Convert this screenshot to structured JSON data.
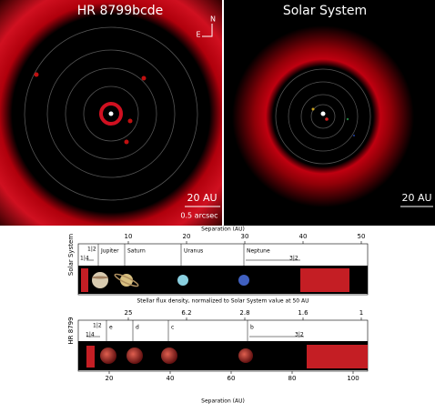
{
  "hr8799_panel": {
    "title": "HR 8799bcde",
    "compass_n": "N",
    "compass_e": "E",
    "scale": "20 AU",
    "angular_scale": "0.5 arcsec"
  },
  "solar_panel": {
    "title": "Solar System",
    "scale": "20 AU"
  },
  "diagram": {
    "top_axis": {
      "label": "Separation (AU)",
      "ticks": [
        "10",
        "20",
        "30",
        "40",
        "50"
      ]
    },
    "flux_axis": {
      "label": "Stellar flux density, normalized to Solar System value at 50 AU",
      "ticks": [
        "25",
        "6.2",
        "2.8",
        "1.6",
        "1"
      ]
    },
    "bottom_axis": {
      "label": "Separation (AU)",
      "ticks": [
        "20",
        "40",
        "60",
        "80",
        "100"
      ]
    },
    "solar_row": {
      "label": "Solar System",
      "planets": [
        "Jupiter",
        "Saturn",
        "Uranus",
        "Neptune"
      ],
      "resonances": [
        "1|2",
        "1|4",
        "3|2"
      ]
    },
    "hr_row": {
      "label": "HR 8799",
      "planets": [
        "e",
        "d",
        "c",
        "b"
      ],
      "resonances": [
        "1|2",
        "1|4",
        "3|2"
      ]
    }
  }
}
